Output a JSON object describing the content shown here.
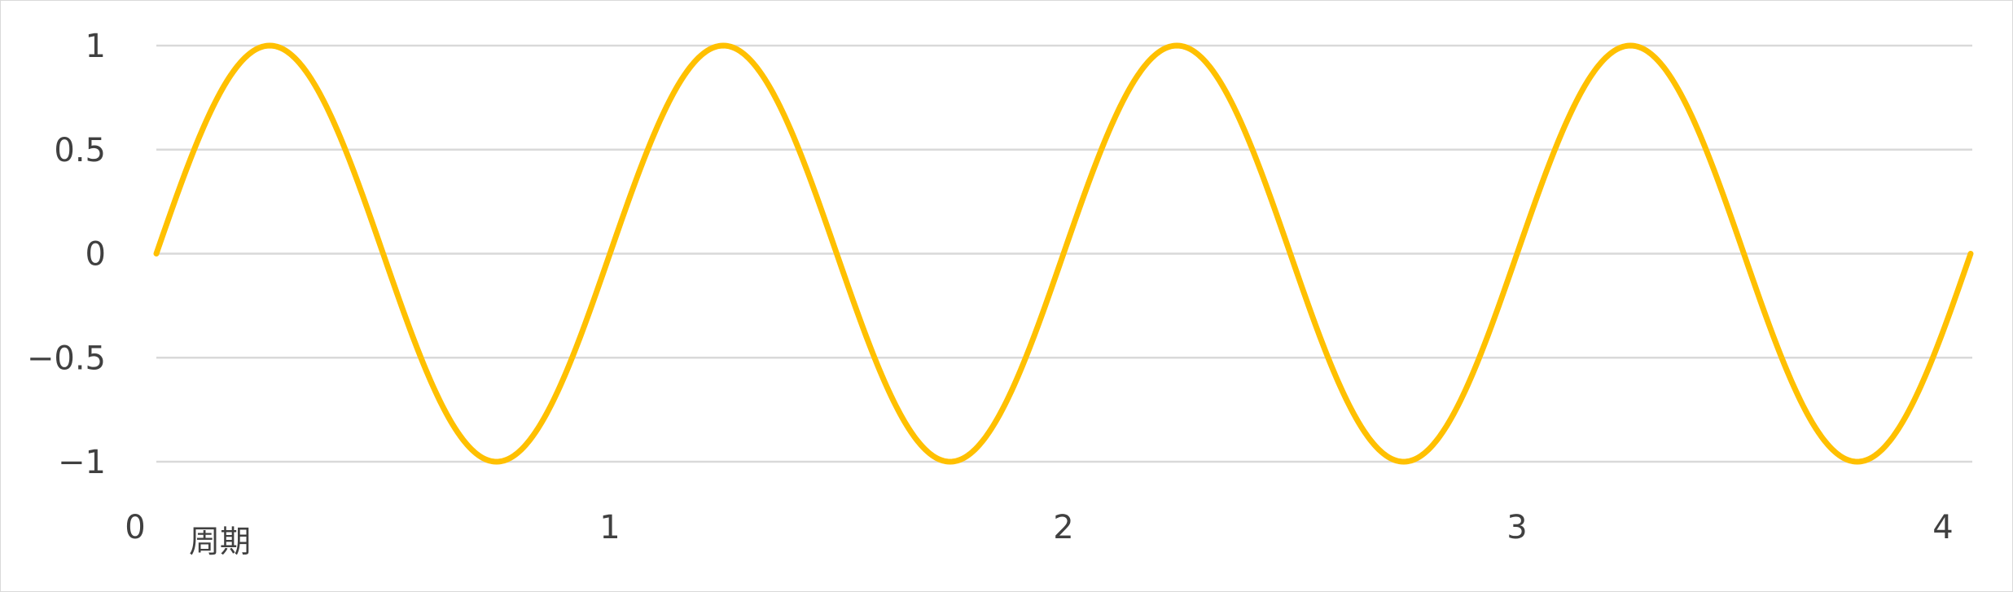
{
  "chart_data": {
    "type": "line",
    "title": "",
    "xlabel": "周期",
    "ylabel": "",
    "xlim": [
      0,
      4
    ],
    "ylim": [
      -1,
      1
    ],
    "x_ticks": [
      "0",
      "1",
      "2",
      "3",
      "4"
    ],
    "y_ticks": [
      "1",
      "0.5",
      "0",
      "-0.5",
      "-1"
    ],
    "grid": true,
    "legend": "none",
    "series": [
      {
        "color": "#FFC000",
        "function": "sin(2π·x)",
        "cycles": 4,
        "x": [
          0,
          0.25,
          0.5,
          0.75,
          1,
          1.25,
          1.5,
          1.75,
          2,
          2.25,
          2.5,
          2.75,
          3,
          3.25,
          3.5,
          3.75,
          4
        ],
        "y": [
          0,
          1,
          0,
          -1,
          0,
          1,
          0,
          -1,
          0,
          1,
          0,
          -1,
          0,
          1,
          0,
          -1,
          0
        ]
      }
    ]
  }
}
